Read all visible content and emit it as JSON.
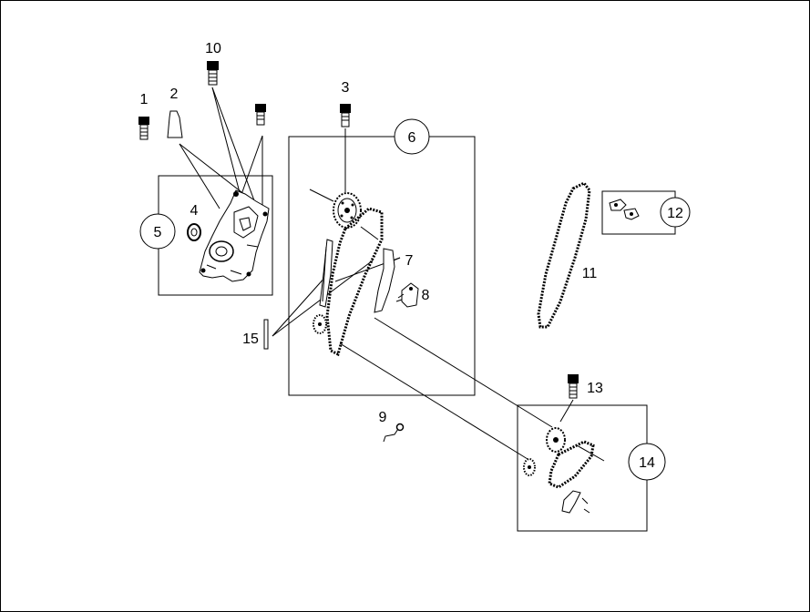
{
  "callouts": {
    "c1": "1",
    "c2": "2",
    "c3": "3",
    "c4": "4",
    "c5": "5",
    "c6": "6",
    "c7": "7",
    "c8": "8",
    "c9": "9",
    "c10": "10",
    "c11": "11",
    "c12": "12",
    "c13": "13",
    "c14": "14",
    "c15": "15"
  }
}
